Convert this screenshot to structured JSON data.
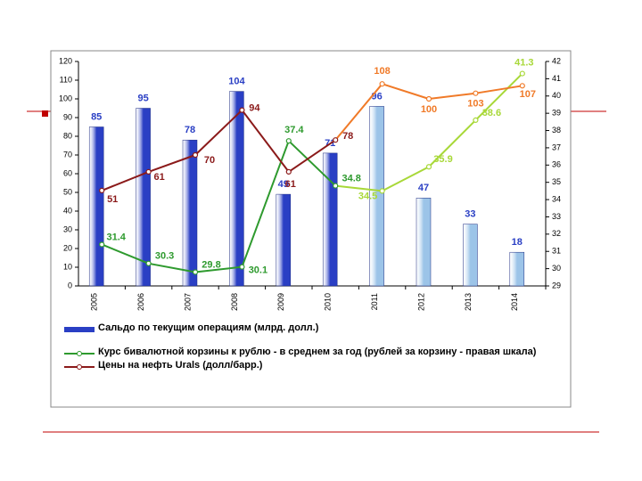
{
  "chart_data": {
    "type": "bar-line",
    "categories": [
      "2005",
      "2006",
      "2007",
      "2008",
      "2009",
      "2010",
      "2011",
      "2012",
      "2013",
      "2014"
    ],
    "series": [
      {
        "name": "Сальдо по текущим операциям (млрд. долл.)",
        "type": "bar",
        "color": "#2a3fc4",
        "colors": [
          "#2a3fc4",
          "#2a3fc4",
          "#2a3fc4",
          "#2a3fc4",
          "#2a3fc4",
          "#2a3fc4",
          "#9cc4e8",
          "#9cc4e8",
          "#9cc4e8",
          "#9cc4e8"
        ],
        "values": [
          85,
          95,
          78,
          104,
          49,
          71,
          96,
          47,
          33,
          18
        ]
      },
      {
        "name": "Курс бивалютной корзины к рублю - в среднем за год (рублей за корзину - правая шкала)",
        "type": "line",
        "axis": "y2",
        "color": "#2e9a2e",
        "colors": [
          "#2e9a2e",
          "#2e9a2e",
          "#2e9a2e",
          "#2e9a2e",
          "#2e9a2e",
          "#2e9a2e",
          "#a8d838",
          "#a8d838",
          "#a8d838",
          "#a8d838"
        ],
        "values": [
          31.4,
          30.3,
          29.8,
          30.1,
          37.4,
          34.8,
          34.5,
          35.9,
          38.6,
          41.3
        ]
      },
      {
        "name": "Цены на нефть Urals (долл/барр.)",
        "type": "line",
        "color": "#8b1a1a",
        "colors": [
          "#8b1a1a",
          "#8b1a1a",
          "#8b1a1a",
          "#8b1a1a",
          "#8b1a1a",
          "#8b1a1a",
          "#f07a28",
          "#f07a28",
          "#f07a28",
          "#f07a28"
        ],
        "values": [
          51,
          61,
          70,
          94,
          61,
          78,
          108,
          100,
          103,
          107
        ]
      }
    ],
    "ylim": [
      0,
      120
    ],
    "yticks": [
      0,
      10,
      20,
      30,
      40,
      50,
      60,
      70,
      80,
      90,
      100,
      110,
      120
    ],
    "y2lim": [
      29,
      42
    ],
    "y2ticks": [
      29,
      30,
      31,
      32,
      33,
      34,
      35,
      36,
      37,
      38,
      39,
      40,
      41,
      42
    ]
  }
}
